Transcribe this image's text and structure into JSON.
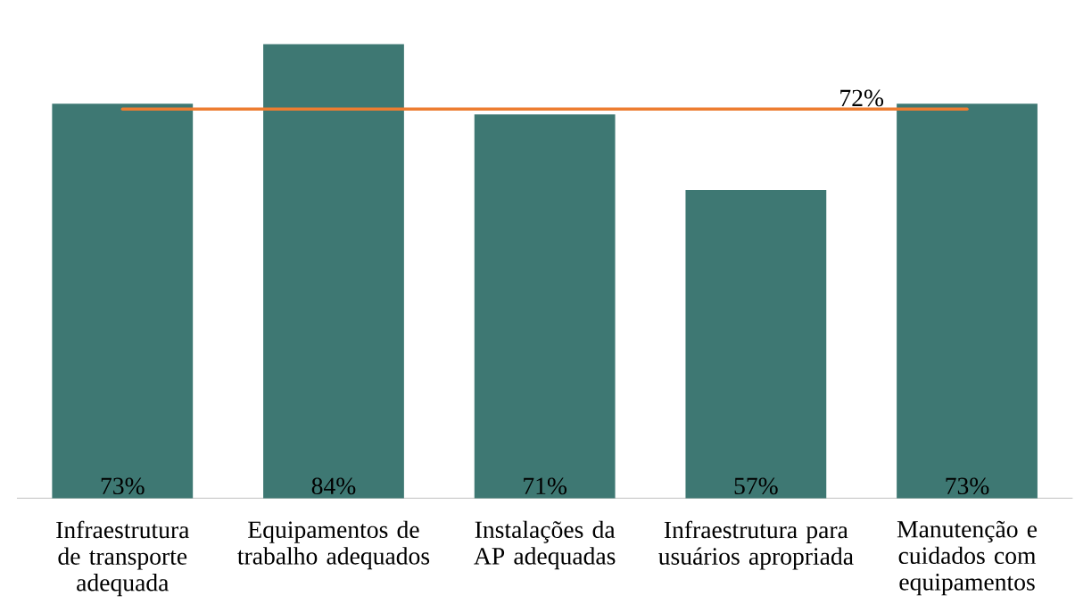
{
  "chart_data": {
    "type": "bar",
    "categories": [
      "Infraestrutura de transporte adequada",
      "Equipamentos de trabalho adequados",
      "Instalações da AP adequadas",
      "Infraestrutura para usuários apropriada",
      "Manutenção e cuidados com equipamentos"
    ],
    "values": [
      73,
      84,
      71,
      57,
      73
    ],
    "value_labels": [
      "73%",
      "84%",
      "71%",
      "57%",
      "73%"
    ],
    "color": "#3e7873",
    "ref_lines": [
      {
        "axis": "y",
        "value": 72,
        "label": "72%",
        "color": "#ed7d31"
      }
    ]
  }
}
